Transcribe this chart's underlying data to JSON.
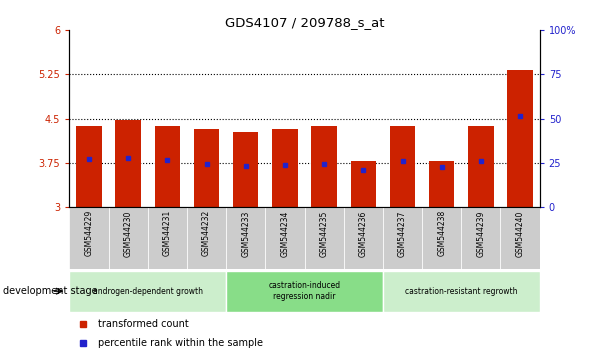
{
  "title": "GDS4107 / 209788_s_at",
  "samples": [
    "GSM544229",
    "GSM544230",
    "GSM544231",
    "GSM544232",
    "GSM544233",
    "GSM544234",
    "GSM544235",
    "GSM544236",
    "GSM544237",
    "GSM544238",
    "GSM544239",
    "GSM544240"
  ],
  "bar_values": [
    4.38,
    4.47,
    4.37,
    4.33,
    4.28,
    4.33,
    4.38,
    3.78,
    4.37,
    3.78,
    4.37,
    5.32
  ],
  "blue_dot_values": [
    3.82,
    3.83,
    3.8,
    3.73,
    3.7,
    3.72,
    3.73,
    3.63,
    3.78,
    3.68,
    3.78,
    4.55
  ],
  "bar_bottom": 3.0,
  "ylim_left": [
    3.0,
    6.0
  ],
  "ylim_right": [
    0,
    100
  ],
  "yticks_left": [
    3.0,
    3.75,
    4.5,
    5.25,
    6.0
  ],
  "ytick_labels_left": [
    "3",
    "3.75",
    "4.5",
    "5.25",
    "6"
  ],
  "yticks_right": [
    0,
    25,
    50,
    75,
    100
  ],
  "ytick_labels_right": [
    "0",
    "25",
    "50",
    "75",
    "100%"
  ],
  "hlines": [
    3.75,
    4.5,
    5.25
  ],
  "bar_color": "#cc2200",
  "dot_color": "#2222cc",
  "bar_width": 0.65,
  "groups": [
    {
      "label": "androgen-dependent growth",
      "start": 0,
      "end": 3,
      "color": "#cceecc"
    },
    {
      "label": "castration-induced\nregression nadir",
      "start": 4,
      "end": 7,
      "color": "#88dd88"
    },
    {
      "label": "castration-resistant regrowth",
      "start": 8,
      "end": 11,
      "color": "#cceecc"
    }
  ],
  "xlabel_stage": "development stage",
  "legend_items": [
    {
      "label": "transformed count",
      "color": "#cc2200"
    },
    {
      "label": "percentile rank within the sample",
      "color": "#2222cc"
    }
  ],
  "tick_color_left": "#cc2200",
  "tick_color_right": "#2222cc",
  "xtick_bg": "#cccccc"
}
